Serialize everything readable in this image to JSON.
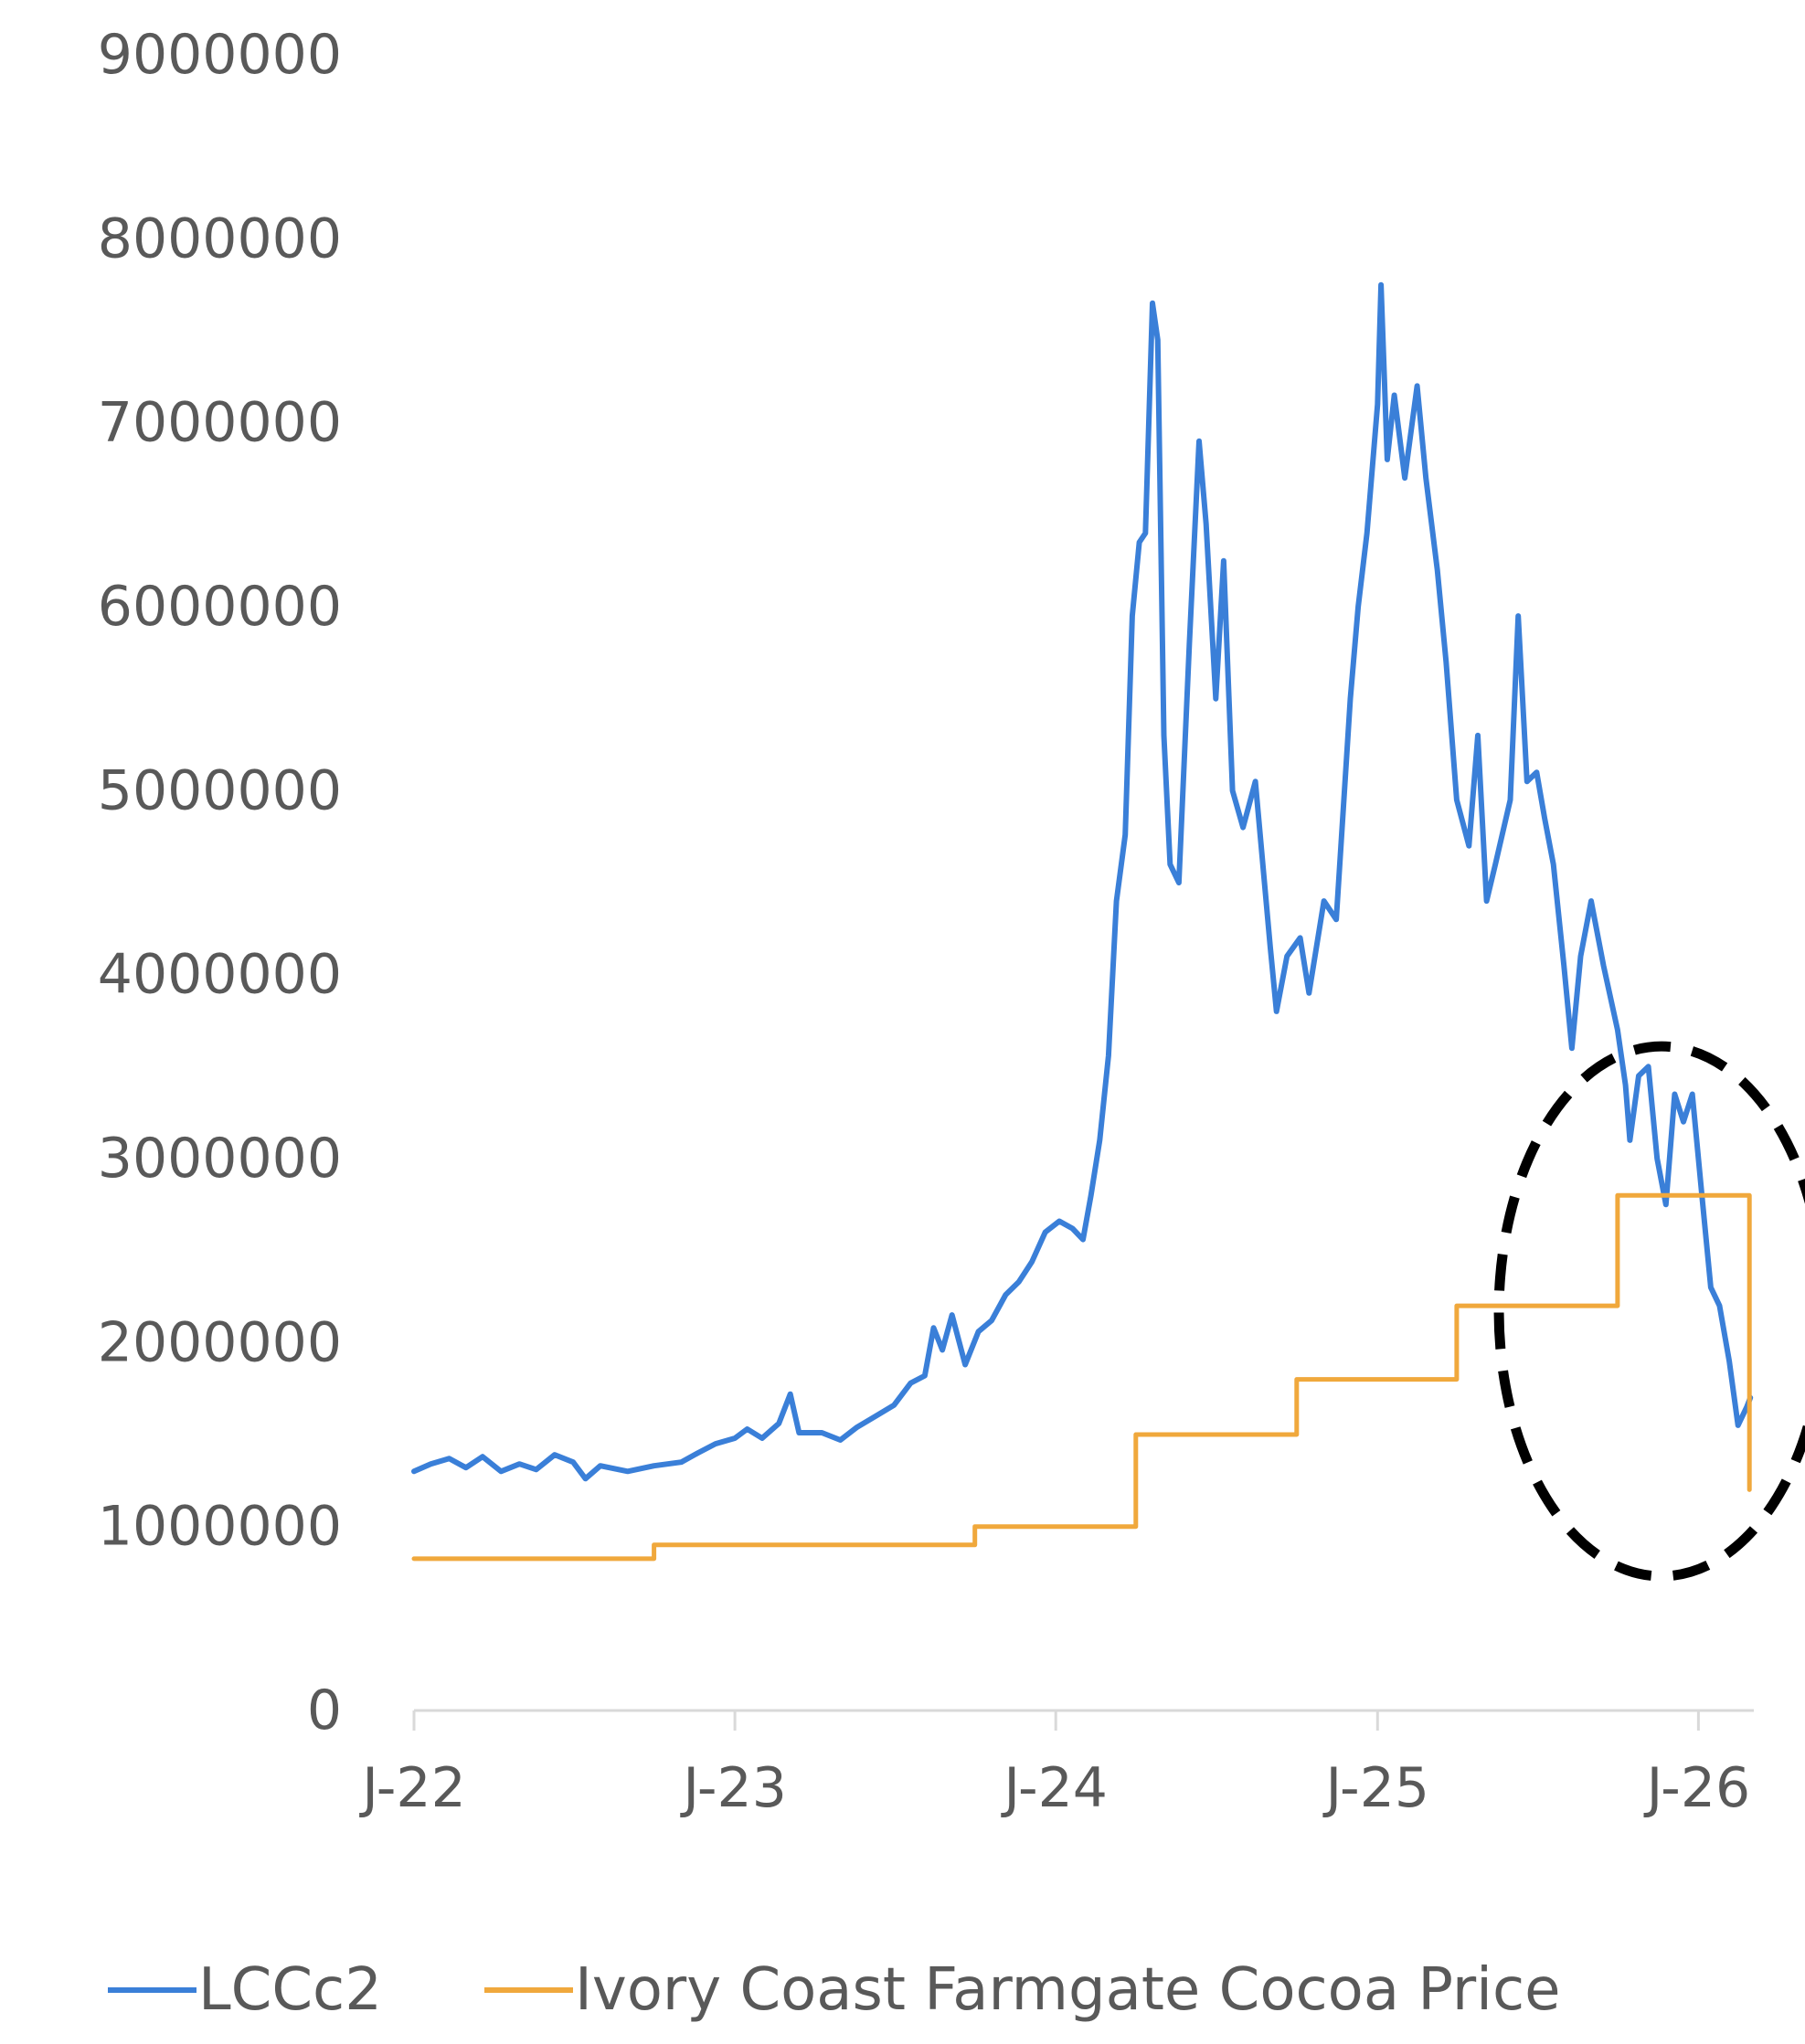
{
  "chart_data": {
    "type": "line",
    "title": "",
    "xlabel": "",
    "ylabel": "",
    "ylim": [
      0,
      9000000
    ],
    "yticks": [
      0,
      1000000,
      2000000,
      3000000,
      4000000,
      5000000,
      6000000,
      7000000,
      8000000,
      9000000
    ],
    "ytick_labels": [
      "0",
      "1000000",
      "2000000",
      "3000000",
      "4000000",
      "5000000",
      "6000000",
      "7000000",
      "8000000",
      "9000000"
    ],
    "xlim": [
      "2022-01-01",
      "2026-03-05"
    ],
    "xticks": [
      "2022-01-01",
      "2023-01-01",
      "2024-01-01",
      "2025-01-01",
      "2026-01-01"
    ],
    "xtick_labels": [
      "J-22",
      "J-23",
      "J-24",
      "J-25",
      "J-26"
    ],
    "grid": false,
    "legend": {
      "position": "bottom"
    },
    "series": [
      {
        "name": "LCCc2",
        "color": "#3a7fd8",
        "points": [
          [
            "2022-01-01",
            1300000
          ],
          [
            "2022-01-20",
            1340000
          ],
          [
            "2022-02-10",
            1370000
          ],
          [
            "2022-03-01",
            1320000
          ],
          [
            "2022-03-20",
            1380000
          ],
          [
            "2022-04-10",
            1300000
          ],
          [
            "2022-05-01",
            1340000
          ],
          [
            "2022-05-20",
            1310000
          ],
          [
            "2022-06-10",
            1390000
          ],
          [
            "2022-07-01",
            1350000
          ],
          [
            "2022-07-15",
            1260000
          ],
          [
            "2022-08-01",
            1330000
          ],
          [
            "2022-09-01",
            1300000
          ],
          [
            "2022-10-01",
            1330000
          ],
          [
            "2022-11-01",
            1350000
          ],
          [
            "2022-11-20",
            1400000
          ],
          [
            "2022-12-10",
            1450000
          ],
          [
            "2023-01-01",
            1480000
          ],
          [
            "2023-01-15",
            1530000
          ],
          [
            "2023-02-01",
            1480000
          ],
          [
            "2023-02-20",
            1560000
          ],
          [
            "2023-03-05",
            1720000
          ],
          [
            "2023-03-15",
            1510000
          ],
          [
            "2023-04-10",
            1510000
          ],
          [
            "2023-05-01",
            1470000
          ],
          [
            "2023-05-20",
            1540000
          ],
          [
            "2023-06-10",
            1600000
          ],
          [
            "2023-07-01",
            1660000
          ],
          [
            "2023-07-20",
            1780000
          ],
          [
            "2023-08-05",
            1820000
          ],
          [
            "2023-08-15",
            2080000
          ],
          [
            "2023-08-25",
            1960000
          ],
          [
            "2023-09-05",
            2150000
          ],
          [
            "2023-09-20",
            1880000
          ],
          [
            "2023-10-05",
            2060000
          ],
          [
            "2023-10-20",
            2120000
          ],
          [
            "2023-11-05",
            2260000
          ],
          [
            "2023-11-20",
            2330000
          ],
          [
            "2023-12-05",
            2440000
          ],
          [
            "2023-12-20",
            2600000
          ],
          [
            "2024-01-05",
            2660000
          ],
          [
            "2024-01-20",
            2620000
          ],
          [
            "2024-02-01",
            2560000
          ],
          [
            "2024-02-10",
            2800000
          ],
          [
            "2024-02-20",
            3100000
          ],
          [
            "2024-03-01",
            3560000
          ],
          [
            "2024-03-10",
            4400000
          ],
          [
            "2024-03-20",
            4760000
          ],
          [
            "2024-03-28",
            5950000
          ],
          [
            "2024-04-05",
            6350000
          ],
          [
            "2024-04-12",
            6400000
          ],
          [
            "2024-04-20",
            7650000
          ],
          [
            "2024-04-26",
            7450000
          ],
          [
            "2024-05-03",
            5300000
          ],
          [
            "2024-05-10",
            4600000
          ],
          [
            "2024-05-20",
            4500000
          ],
          [
            "2024-06-01",
            5800000
          ],
          [
            "2024-06-12",
            6900000
          ],
          [
            "2024-06-20",
            6450000
          ],
          [
            "2024-07-01",
            5500000
          ],
          [
            "2024-07-10",
            6250000
          ],
          [
            "2024-07-20",
            5000000
          ],
          [
            "2024-08-01",
            4800000
          ],
          [
            "2024-08-15",
            5050000
          ],
          [
            "2024-09-01",
            4150000
          ],
          [
            "2024-09-08",
            3800000
          ],
          [
            "2024-09-20",
            4100000
          ],
          [
            "2024-10-05",
            4200000
          ],
          [
            "2024-10-15",
            3900000
          ],
          [
            "2024-11-01",
            4400000
          ],
          [
            "2024-11-15",
            4300000
          ],
          [
            "2024-12-01",
            5500000
          ],
          [
            "2024-12-10",
            6000000
          ],
          [
            "2024-12-20",
            6400000
          ],
          [
            "2025-01-01",
            7100000
          ],
          [
            "2025-01-05",
            7750000
          ],
          [
            "2025-01-12",
            6800000
          ],
          [
            "2025-01-20",
            7150000
          ],
          [
            "2025-02-01",
            6700000
          ],
          [
            "2025-02-15",
            7200000
          ],
          [
            "2025-02-25",
            6700000
          ],
          [
            "2025-03-10",
            6200000
          ],
          [
            "2025-03-20",
            5700000
          ],
          [
            "2025-04-01",
            4950000
          ],
          [
            "2025-04-15",
            4700000
          ],
          [
            "2025-04-25",
            5300000
          ],
          [
            "2025-05-05",
            4400000
          ],
          [
            "2025-05-15",
            4600000
          ],
          [
            "2025-06-01",
            4950000
          ],
          [
            "2025-06-10",
            5950000
          ],
          [
            "2025-06-20",
            5050000
          ],
          [
            "2025-07-01",
            5100000
          ],
          [
            "2025-07-10",
            4850000
          ],
          [
            "2025-07-20",
            4600000
          ],
          [
            "2025-08-01",
            4050000
          ],
          [
            "2025-08-10",
            3600000
          ],
          [
            "2025-08-20",
            4100000
          ],
          [
            "2025-09-01",
            4400000
          ],
          [
            "2025-09-15",
            4050000
          ],
          [
            "2025-10-01",
            3700000
          ],
          [
            "2025-10-10",
            3400000
          ],
          [
            "2025-10-15",
            3100000
          ],
          [
            "2025-10-25",
            3450000
          ],
          [
            "2025-11-05",
            3500000
          ],
          [
            "2025-11-15",
            3000000
          ],
          [
            "2025-11-25",
            2750000
          ],
          [
            "2025-12-05",
            3350000
          ],
          [
            "2025-12-15",
            3200000
          ],
          [
            "2025-12-25",
            3350000
          ],
          [
            "2026-01-05",
            2800000
          ],
          [
            "2026-01-15",
            2300000
          ],
          [
            "2026-01-25",
            2200000
          ],
          [
            "2026-02-05",
            1900000
          ],
          [
            "2026-02-15",
            1550000
          ],
          [
            "2026-02-25",
            1650000
          ],
          [
            "2026-03-01",
            1700000
          ]
        ]
      },
      {
        "name": "Ivory Coast Farmgate Cocoa Price",
        "color": "#f0a83c",
        "points": [
          [
            "2022-01-01",
            825000
          ],
          [
            "2022-10-01",
            825000
          ],
          [
            "2022-10-01",
            900000
          ],
          [
            "2023-10-01",
            900000
          ],
          [
            "2023-10-01",
            1000000
          ],
          [
            "2024-04-01",
            1000000
          ],
          [
            "2024-04-01",
            1500000
          ],
          [
            "2024-10-01",
            1500000
          ],
          [
            "2024-10-01",
            1800000
          ],
          [
            "2025-04-01",
            1800000
          ],
          [
            "2025-04-01",
            2200000
          ],
          [
            "2025-10-01",
            2200000
          ],
          [
            "2025-10-01",
            2800000
          ],
          [
            "2026-02-28",
            2800000
          ],
          [
            "2026-02-28",
            1200000
          ]
        ]
      }
    ],
    "annotations": [
      {
        "type": "dashed-ellipse",
        "center": [
          "2025-11-20",
          2170000
        ],
        "radius_x_days": 185,
        "radius_y": 1440000,
        "color": "#000000"
      }
    ]
  }
}
